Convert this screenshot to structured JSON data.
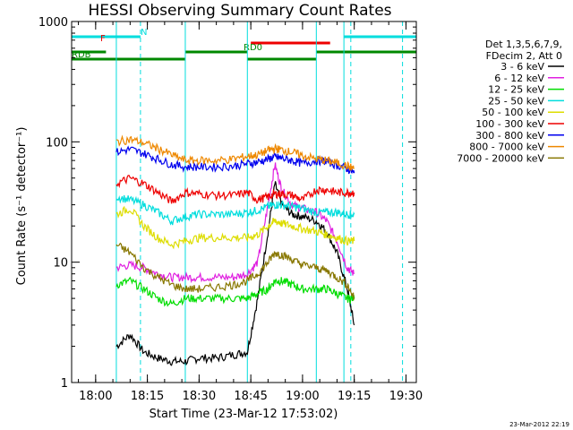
{
  "chart_data": {
    "type": "line",
    "title": "HESSI Observing Summary Count Rates",
    "xlabel": "Start Time (23-Mar-12 17:53:02)",
    "ylabel": "Count Rate (s⁻¹ detector⁻¹)",
    "yscale": "log",
    "ylim": [
      1,
      1000
    ],
    "xlim": [
      "17:53:02",
      "19:33:00"
    ],
    "x_ticks": [
      "18:00",
      "18:15",
      "18:30",
      "18:45",
      "19:00",
      "19:15",
      "19:30"
    ],
    "y_ticks": [
      "1",
      "10",
      "100",
      "1000"
    ],
    "legend_position": "right",
    "legend_header": [
      "Det 1,3,5,6,7,9,",
      "FDecim 2, Att 0"
    ],
    "timestamp": "23-Mar-2012 22:19",
    "series": [
      {
        "name": "3 - 6 keV",
        "color": "#000000",
        "x": [
          "18:06",
          "18:10",
          "18:14",
          "18:18",
          "18:22",
          "18:26",
          "18:30",
          "18:35",
          "18:40",
          "18:44",
          "18:47",
          "18:50",
          "18:52",
          "18:54",
          "18:57",
          "19:00",
          "19:04",
          "19:07",
          "19:10",
          "19:13",
          "19:15"
        ],
        "y": [
          2.0,
          2.5,
          1.8,
          1.6,
          1.5,
          1.5,
          1.6,
          1.6,
          1.7,
          1.8,
          5,
          18,
          45,
          30,
          25,
          24,
          22,
          18,
          12,
          6,
          3
        ]
      },
      {
        "name": "6 - 12 keV",
        "color": "#e020e0",
        "x": [
          "18:06",
          "18:10",
          "18:14",
          "18:18",
          "18:22",
          "18:26",
          "18:30",
          "18:35",
          "18:40",
          "18:44",
          "18:47",
          "18:50",
          "18:52",
          "18:54",
          "18:57",
          "19:00",
          "19:04",
          "19:07",
          "19:10",
          "19:13",
          "19:15"
        ],
        "y": [
          9,
          9.5,
          9,
          8,
          7.5,
          7.5,
          7.5,
          7.5,
          7.5,
          8,
          10,
          30,
          65,
          40,
          30,
          28,
          26,
          22,
          15,
          9,
          8
        ]
      },
      {
        "name": "12 - 25 keV",
        "color": "#00dd00",
        "x": [
          "18:06",
          "18:10",
          "18:14",
          "18:18",
          "18:22",
          "18:26",
          "18:30",
          "18:35",
          "18:40",
          "18:44",
          "18:47",
          "18:50",
          "18:52",
          "18:54",
          "18:57",
          "19:00",
          "19:04",
          "19:07",
          "19:10",
          "19:13",
          "19:15"
        ],
        "y": [
          6.5,
          7,
          6,
          5,
          4.5,
          5,
          5,
          5,
          5,
          5,
          5.5,
          6,
          7,
          7,
          6.5,
          6,
          6,
          6,
          5.5,
          5,
          5
        ]
      },
      {
        "name": "25 - 50 keV",
        "color": "#00dddd",
        "x": [
          "18:06",
          "18:10",
          "18:14",
          "18:18",
          "18:22",
          "18:26",
          "18:30",
          "18:35",
          "18:40",
          "18:44",
          "18:47",
          "18:50",
          "18:52",
          "18:54",
          "18:57",
          "19:00",
          "19:04",
          "19:07",
          "19:10",
          "19:13",
          "19:15"
        ],
        "y": [
          35,
          33,
          30,
          26,
          22,
          24,
          25,
          25,
          25,
          26,
          27,
          29,
          30,
          30,
          29,
          28,
          26,
          26,
          26,
          25,
          25
        ]
      },
      {
        "name": "50 - 100 keV",
        "color": "#dddd00",
        "x": [
          "18:06",
          "18:10",
          "18:14",
          "18:18",
          "18:22",
          "18:26",
          "18:30",
          "18:35",
          "18:40",
          "18:44",
          "18:47",
          "18:50",
          "18:52",
          "18:54",
          "18:57",
          "19:00",
          "19:04",
          "19:07",
          "19:10",
          "19:13",
          "19:15"
        ],
        "y": [
          25,
          28,
          20,
          16,
          14,
          15,
          16,
          16,
          16,
          16,
          17,
          20,
          22,
          21,
          20,
          19,
          18,
          17,
          16,
          15,
          15
        ]
      },
      {
        "name": "100 - 300 keV",
        "color": "#ee0000",
        "x": [
          "18:06",
          "18:10",
          "18:14",
          "18:18",
          "18:22",
          "18:26",
          "18:30",
          "18:35",
          "18:40",
          "18:44",
          "18:47",
          "18:50",
          "18:52",
          "18:54",
          "18:57",
          "19:00",
          "19:04",
          "19:07",
          "19:10",
          "19:13",
          "19:15"
        ],
        "y": [
          45,
          50,
          45,
          38,
          32,
          38,
          37,
          36,
          36,
          38,
          33,
          35,
          37,
          37,
          36,
          33,
          40,
          40,
          38,
          38,
          38
        ]
      },
      {
        "name": "300 - 800 keV",
        "color": "#0000ee",
        "x": [
          "18:06",
          "18:10",
          "18:14",
          "18:18",
          "18:22",
          "18:26",
          "18:30",
          "18:35",
          "18:40",
          "18:44",
          "18:47",
          "18:50",
          "18:52",
          "18:54",
          "18:57",
          "19:00",
          "19:04",
          "19:07",
          "19:10",
          "19:13",
          "19:15"
        ],
        "y": [
          82,
          87,
          80,
          72,
          65,
          62,
          62,
          62,
          63,
          66,
          68,
          72,
          75,
          73,
          70,
          66,
          70,
          69,
          64,
          60,
          55
        ]
      },
      {
        "name": "800 - 7000 keV",
        "color": "#ee8800",
        "x": [
          "18:06",
          "18:10",
          "18:14",
          "18:18",
          "18:22",
          "18:26",
          "18:30",
          "18:35",
          "18:40",
          "18:44",
          "18:47",
          "18:50",
          "18:52",
          "18:54",
          "18:57",
          "19:00",
          "19:04",
          "19:07",
          "19:10",
          "19:13",
          "19:15"
        ],
        "y": [
          100,
          105,
          98,
          88,
          78,
          70,
          70,
          70,
          72,
          76,
          78,
          85,
          88,
          86,
          82,
          77,
          72,
          70,
          67,
          63,
          60
        ]
      },
      {
        "name": "7000 - 20000 keV",
        "color": "#887700",
        "x": [
          "18:06",
          "18:10",
          "18:14",
          "18:18",
          "18:22",
          "18:26",
          "18:30",
          "18:35",
          "18:40",
          "18:44",
          "18:47",
          "18:50",
          "18:52",
          "18:54",
          "18:57",
          "19:00",
          "19:04",
          "19:07",
          "19:10",
          "19:13",
          "19:15"
        ],
        "y": [
          14,
          12,
          9,
          7.5,
          6.5,
          6,
          6,
          6.2,
          6.5,
          7,
          8,
          10,
          12,
          11.5,
          10.5,
          9.5,
          9,
          8.5,
          7.5,
          6.5,
          5
        ]
      }
    ],
    "vertical_lines": [
      {
        "time": "18:06",
        "color": "#00dddd",
        "style": "solid"
      },
      {
        "time": "18:26",
        "color": "#00dddd",
        "style": "solid"
      },
      {
        "time": "18:44",
        "color": "#00dddd",
        "style": "solid"
      },
      {
        "time": "19:04",
        "color": "#00dddd",
        "style": "solid"
      },
      {
        "time": "19:12",
        "color": "#00dddd",
        "style": "solid"
      },
      {
        "time": "18:13",
        "color": "#00dddd",
        "style": "dashed"
      },
      {
        "time": "19:14",
        "color": "#00dddd",
        "style": "dashed"
      },
      {
        "time": "19:29",
        "color": "#00dddd",
        "style": "dashed"
      }
    ],
    "status_bars": [
      {
        "label": "N",
        "color": "#00dddd",
        "segments": [
          [
            "17:53:02",
            "18:13"
          ],
          [
            "19:12",
            "19:33"
          ]
        ]
      },
      {
        "label": "F",
        "color": "#ee0000",
        "segments": [
          [
            "18:45",
            "19:08"
          ]
        ]
      },
      {
        "label": "RD0",
        "color": "#008800",
        "segments": [
          [
            "17:53:02",
            "18:03"
          ],
          [
            "18:26",
            "18:44"
          ],
          [
            "19:04",
            "19:33"
          ]
        ]
      },
      {
        "label": "RDB",
        "color": "#008800",
        "segments": [
          [
            "17:53:02",
            "18:26"
          ],
          [
            "18:44",
            "19:04"
          ]
        ]
      }
    ]
  }
}
